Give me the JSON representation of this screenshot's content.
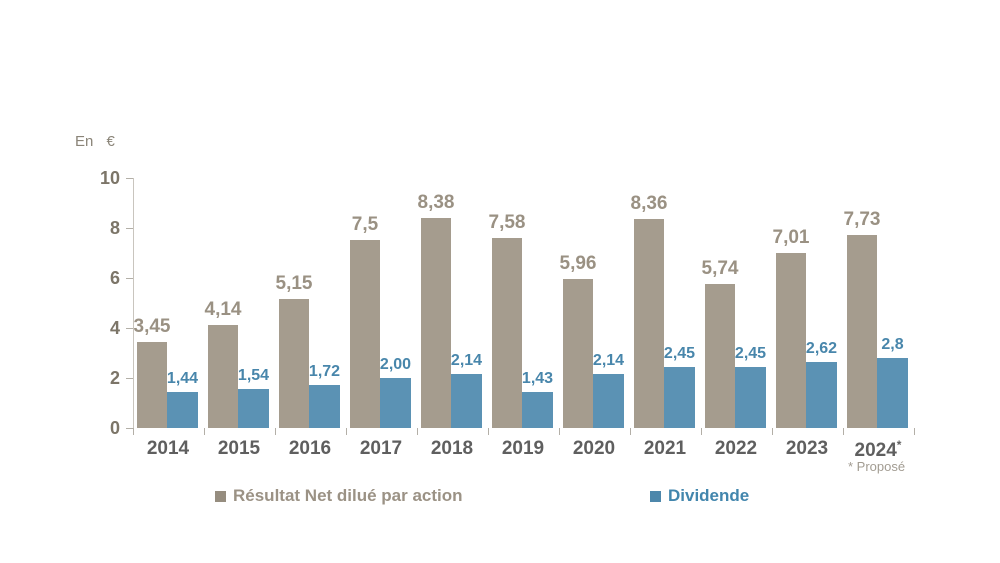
{
  "chart_data": {
    "type": "bar",
    "title": "",
    "unit_label": "En €",
    "categories": [
      "2014",
      "2015",
      "2016",
      "2017",
      "2018",
      "2019",
      "2020",
      "2021",
      "2022",
      "2023",
      "2024"
    ],
    "category_marker": {
      "index": 10,
      "text": "*"
    },
    "series": [
      {
        "name": "Résultat Net dilué par action",
        "color": "#a59c8e",
        "label_color": "#9a9183",
        "values": [
          3.45,
          4.14,
          5.15,
          7.5,
          8.38,
          7.58,
          5.96,
          8.36,
          5.74,
          7.01,
          7.73
        ],
        "labels": [
          "3,45",
          "4,14",
          "5,15",
          "7,5",
          "8,38",
          "7,58",
          "5,96",
          "8,36",
          "5,74",
          "7,01",
          "7,73"
        ]
      },
      {
        "name": "Dividende",
        "color": "#5b92b4",
        "label_color": "#4886ab",
        "values": [
          1.44,
          1.54,
          1.72,
          2.0,
          2.14,
          1.43,
          2.14,
          2.45,
          2.45,
          2.62,
          2.8
        ],
        "labels": [
          "1,44",
          "1,54",
          "1,72",
          "2,00",
          "2,14",
          "1,43",
          "2,14",
          "2,45",
          "2,45",
          "2,62",
          "2,8"
        ]
      }
    ],
    "ylim": [
      0,
      10
    ],
    "yticks": [
      10,
      8,
      6,
      4,
      2,
      0
    ],
    "ytick_labels": [
      "10",
      "8",
      "6",
      "4",
      "2",
      "0"
    ],
    "grid": false,
    "legend_position": "bottom",
    "footnote": "* Proposé",
    "colors": {
      "ytick_label": "#7c7568",
      "year_label": "#5f5f5f",
      "axis_line": "#c9c5be",
      "tick_mark": "#b3afa7",
      "legend_series1_text": "#9b9285",
      "legend_series2_text": "#4286ad",
      "footnote_text": "#a29c92",
      "unit_text": "#8a8478"
    }
  }
}
